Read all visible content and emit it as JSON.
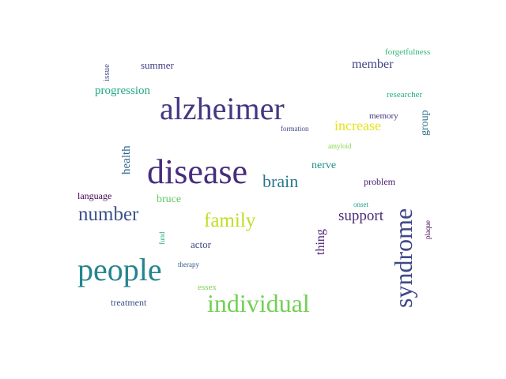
{
  "words": [
    {
      "text": "alzheimer",
      "color": "#453781"
    },
    {
      "text": "disease",
      "color": "#472d7b"
    },
    {
      "text": "people",
      "color": "#25848e"
    },
    {
      "text": "individual",
      "color": "#73d056"
    },
    {
      "text": "syndrome",
      "color": "#3f4889"
    },
    {
      "text": "number",
      "color": "#3b528b"
    },
    {
      "text": "family",
      "color": "#bddf26"
    },
    {
      "text": "brain",
      "color": "#2a768e"
    },
    {
      "text": "support",
      "color": "#482878"
    },
    {
      "text": "increase",
      "color": "#e5e419"
    },
    {
      "text": "member",
      "color": "#414487"
    },
    {
      "text": "progression",
      "color": "#22a884"
    },
    {
      "text": "summer",
      "color": "#433e85"
    },
    {
      "text": "nerve",
      "color": "#21918c"
    },
    {
      "text": "thing",
      "color": "#481f70"
    },
    {
      "text": "health",
      "color": "#31688e"
    },
    {
      "text": "group",
      "color": "#2c728e"
    },
    {
      "text": "bruce",
      "color": "#5ec962"
    },
    {
      "text": "actor",
      "color": "#3e4a89"
    },
    {
      "text": "forgetfulness",
      "color": "#35b779"
    },
    {
      "text": "researcher",
      "color": "#26ad81"
    },
    {
      "text": "memory",
      "color": "#46327e"
    },
    {
      "text": "problem",
      "color": "#481b6d"
    },
    {
      "text": "treatment",
      "color": "#3b528b"
    },
    {
      "text": "language",
      "color": "#440154"
    },
    {
      "text": "essex",
      "color": "#7ad151"
    },
    {
      "text": "issue",
      "color": "#404688"
    },
    {
      "text": "formation",
      "color": "#3e4989"
    },
    {
      "text": "amyloid",
      "color": "#86d549"
    },
    {
      "text": "onset",
      "color": "#1fa188"
    },
    {
      "text": "therapy",
      "color": "#355f8d"
    },
    {
      "text": "fund",
      "color": "#29af7f"
    },
    {
      "text": "plaque",
      "color": "#440154"
    }
  ]
}
